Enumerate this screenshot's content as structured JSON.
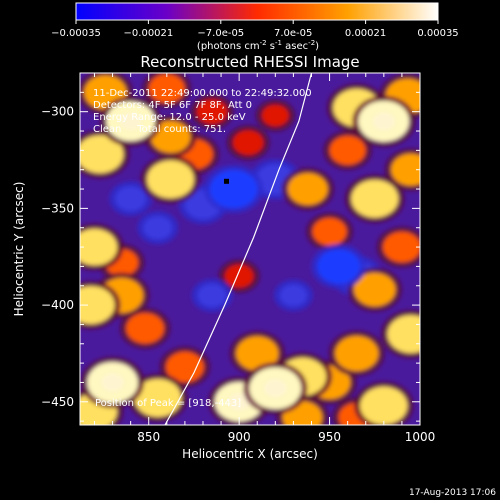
{
  "chart_data": {
    "type": "heatmap",
    "title": "Reconstructed RHESSI Image",
    "xlabel": "Heliocentric X (arcsec)",
    "ylabel": "Heliocentric Y (arcsec)",
    "xlim": [
      812,
      1000
    ],
    "ylim": [
      -462,
      -280
    ],
    "xticks": [
      850,
      900,
      950,
      1000
    ],
    "yticks": [
      -300,
      -350,
      -400,
      -450
    ],
    "colorbar": {
      "range": [
        -0.00035,
        0.00035
      ],
      "tick_labels": [
        "-0.00035",
        "-0.00021",
        "-7.0e-05",
        "7.0e-05",
        "0.00021",
        "0.00035"
      ],
      "label_parts": [
        "(photons cm",
        "-2",
        " s",
        "-1",
        " asec",
        "-2",
        ")"
      ],
      "colors": [
        "#0000ff",
        "#6a00c8",
        "#ff2a00",
        "#ffa000",
        "#ffffff"
      ]
    },
    "annotations": [
      "11-Dec-2011 22:49:00.000 to 22:49:32.000",
      "Detectors: 4F 5F 6F 7F 8F, Att 0",
      "Energy Range: 12.0 - 25.0 keV",
      "Clean     Total counts: 751."
    ],
    "peak_label": "Position of Peak = [918,-443]",
    "peak_marker": {
      "x": 893,
      "y": -336
    },
    "limb_curve": [
      [
        859,
        -462
      ],
      [
        875,
        -435
      ],
      [
        892,
        -400
      ],
      [
        908,
        -365
      ],
      [
        922,
        -330
      ],
      [
        933,
        -305
      ],
      [
        940,
        -280
      ]
    ],
    "sources": [
      {
        "x": 826,
        "y": -290,
        "value": 0.00025
      },
      {
        "x": 840,
        "y": -305,
        "value": 0.00032
      },
      {
        "x": 823,
        "y": -322,
        "value": 0.0003
      },
      {
        "x": 860,
        "y": -288,
        "value": 0.00018
      },
      {
        "x": 885,
        "y": -300,
        "value": 0.00012
      },
      {
        "x": 862,
        "y": -313,
        "value": 0.00022
      },
      {
        "x": 875,
        "y": -322,
        "value": 0.0002
      },
      {
        "x": 862,
        "y": -335,
        "value": 0.0003
      },
      {
        "x": 905,
        "y": -316,
        "value": 0.00012
      },
      {
        "x": 920,
        "y": -302,
        "value": 8e-05
      },
      {
        "x": 965,
        "y": -298,
        "value": 0.0003
      },
      {
        "x": 980,
        "y": -305,
        "value": 0.00034
      },
      {
        "x": 993,
        "y": -292,
        "value": 0.00026
      },
      {
        "x": 960,
        "y": -320,
        "value": 0.00018
      },
      {
        "x": 938,
        "y": -340,
        "value": 0.00022
      },
      {
        "x": 975,
        "y": -345,
        "value": 0.0003
      },
      {
        "x": 995,
        "y": -330,
        "value": 0.00022
      },
      {
        "x": 950,
        "y": -362,
        "value": 0.00016
      },
      {
        "x": 820,
        "y": -370,
        "value": 0.00028
      },
      {
        "x": 835,
        "y": -378,
        "value": 0.00015
      },
      {
        "x": 818,
        "y": -400,
        "value": 0.0003
      },
      {
        "x": 835,
        "y": -395,
        "value": 0.00026
      },
      {
        "x": 848,
        "y": -412,
        "value": 0.0002
      },
      {
        "x": 900,
        "y": -385,
        "value": 0.0001
      },
      {
        "x": 990,
        "y": -370,
        "value": 0.0002
      },
      {
        "x": 975,
        "y": -392,
        "value": 0.00024
      },
      {
        "x": 995,
        "y": -415,
        "value": 0.0003
      },
      {
        "x": 830,
        "y": -440,
        "value": 0.00034
      },
      {
        "x": 855,
        "y": -448,
        "value": 0.0003
      },
      {
        "x": 820,
        "y": -455,
        "value": 0.00028
      },
      {
        "x": 870,
        "y": -432,
        "value": 0.0002
      },
      {
        "x": 910,
        "y": -425,
        "value": 0.00025
      },
      {
        "x": 920,
        "y": -443,
        "value": 0.00035
      },
      {
        "x": 900,
        "y": -450,
        "value": 0.00032
      },
      {
        "x": 935,
        "y": -437,
        "value": 0.0003
      },
      {
        "x": 950,
        "y": -440,
        "value": 0.00024
      },
      {
        "x": 935,
        "y": -458,
        "value": 0.00022
      },
      {
        "x": 965,
        "y": -425,
        "value": 0.00026
      },
      {
        "x": 980,
        "y": -452,
        "value": 0.0003
      },
      {
        "x": 965,
        "y": -458,
        "value": 0.00018
      },
      {
        "x": 897,
        "y": -340,
        "value": -0.0003
      },
      {
        "x": 920,
        "y": -335,
        "value": -0.0002
      },
      {
        "x": 880,
        "y": -348,
        "value": -0.00018
      },
      {
        "x": 955,
        "y": -380,
        "value": -0.00025
      },
      {
        "x": 965,
        "y": -385,
        "value": -0.0002
      },
      {
        "x": 840,
        "y": -345,
        "value": -0.00012
      },
      {
        "x": 885,
        "y": -395,
        "value": -0.0001
      },
      {
        "x": 855,
        "y": -360,
        "value": -0.0001
      },
      {
        "x": 930,
        "y": -395,
        "value": -8e-05
      }
    ]
  },
  "footer": {
    "timestamp": "17-Aug-2013 17:06"
  }
}
